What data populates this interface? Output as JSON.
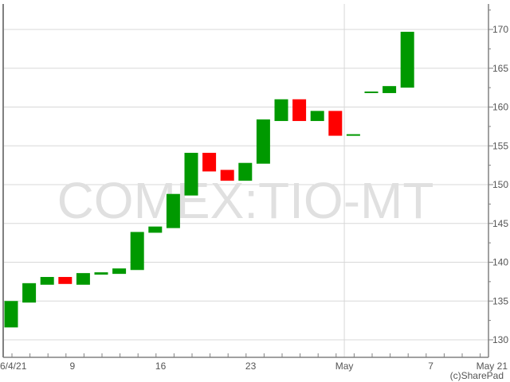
{
  "chart_data": {
    "type": "candlestick",
    "watermark": "COMEX:TIO-MT",
    "copyright": "(c)SharePad",
    "ylim": [
      128,
      173.5
    ],
    "yticks": [
      130,
      135,
      140,
      145,
      150,
      155,
      160,
      165,
      170
    ],
    "xtick_labels": [
      "6/4/21",
      "9",
      "16",
      "23",
      "May",
      "7",
      "May 21"
    ],
    "grid": true,
    "colors": {
      "up": "#009900",
      "down": "#ff0000",
      "grid": "#d8d8d8",
      "axis": "#808080",
      "watermark": "#e0e0e0"
    },
    "candles": [
      {
        "open": 131.6,
        "close": 135.0
      },
      {
        "open": 134.8,
        "close": 137.3
      },
      {
        "open": 137.1,
        "close": 138.1
      },
      {
        "open": 138.1,
        "close": 137.2
      },
      {
        "open": 137.1,
        "close": 138.6
      },
      {
        "open": 138.4,
        "close": 138.7
      },
      {
        "open": 138.5,
        "close": 139.2
      },
      {
        "open": 139.0,
        "close": 143.9
      },
      {
        "open": 143.8,
        "close": 144.6
      },
      {
        "open": 144.4,
        "close": 148.8
      },
      {
        "open": 148.6,
        "close": 154.1
      },
      {
        "open": 154.1,
        "close": 151.7
      },
      {
        "open": 151.9,
        "close": 150.5
      },
      {
        "open": 150.5,
        "close": 152.8
      },
      {
        "open": 152.7,
        "close": 158.4
      },
      {
        "open": 158.2,
        "close": 161.0
      },
      {
        "open": 161.0,
        "close": 158.2
      },
      {
        "open": 158.2,
        "close": 159.5
      },
      {
        "open": 159.5,
        "close": 156.3
      },
      {
        "open": 156.3,
        "close": 156.5
      },
      {
        "open": 161.8,
        "close": 162.0
      },
      {
        "open": 161.8,
        "close": 162.7
      },
      {
        "open": 162.5,
        "close": 169.7
      }
    ]
  }
}
